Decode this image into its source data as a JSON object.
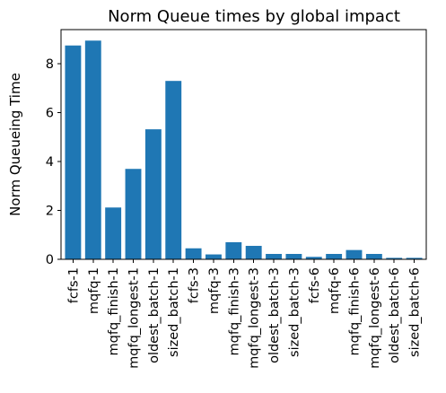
{
  "chart_data": {
    "type": "bar",
    "title": "Norm Queue times by global impact",
    "xlabel": "",
    "ylabel": "Norm Queueing Time",
    "categories": [
      "fcfs-1",
      "mqfq-1",
      "mqfq_finish-1",
      "mqfq_longest-1",
      "oldest_batch-1",
      "sized_batch-1",
      "fcfs-3",
      "mqfq-3",
      "mqfq_finish-3",
      "mqfq_longest-3",
      "oldest_batch-3",
      "sized_batch-3",
      "fcfs-6",
      "mqfq-6",
      "mqfq_finish-6",
      "mqfq_longest-6",
      "oldest_batch-6",
      "sized_batch-6"
    ],
    "values": [
      8.75,
      8.95,
      2.12,
      3.7,
      5.32,
      7.3,
      0.45,
      0.2,
      0.7,
      0.55,
      0.22,
      0.22,
      0.1,
      0.22,
      0.38,
      0.22,
      0.06,
      0.06
    ],
    "ylim": [
      0,
      9.4
    ],
    "yticks": [
      0,
      2,
      4,
      6,
      8
    ],
    "grid": false,
    "bar_color": "#1f77b4"
  }
}
